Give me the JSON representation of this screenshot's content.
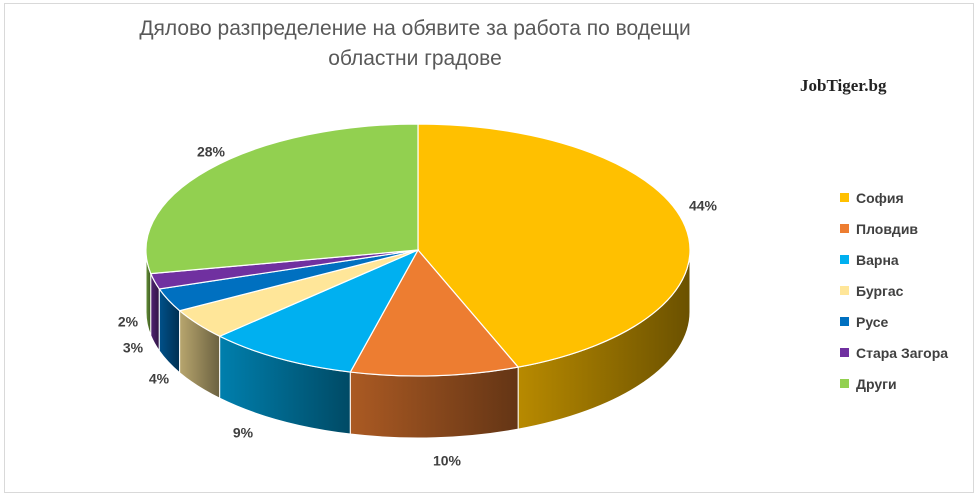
{
  "chart_data": {
    "type": "pie",
    "title": "Дялово разпределение на обявите за работа по водещи областни градове",
    "watermark": "JobTiger.bg",
    "legend_position": "right",
    "slices": [
      {
        "name": "София",
        "value": 44,
        "label": "44%",
        "color": "#FFC000"
      },
      {
        "name": "Пловдив",
        "value": 10,
        "label": "10%",
        "color": "#ED7D31"
      },
      {
        "name": "Варна",
        "value": 9,
        "label": "9%",
        "color": "#00B0F0"
      },
      {
        "name": "Бургас",
        "value": 4,
        "label": "4%",
        "color": "#FFE699"
      },
      {
        "name": "Русе",
        "value": 3,
        "label": "3%",
        "color": "#0070C0"
      },
      {
        "name": "Стара Загора",
        "value": 2,
        "label": "2%",
        "color": "#7030A0"
      },
      {
        "name": "Други",
        "value": 28,
        "label": "28%",
        "color": "#92D050"
      }
    ]
  }
}
